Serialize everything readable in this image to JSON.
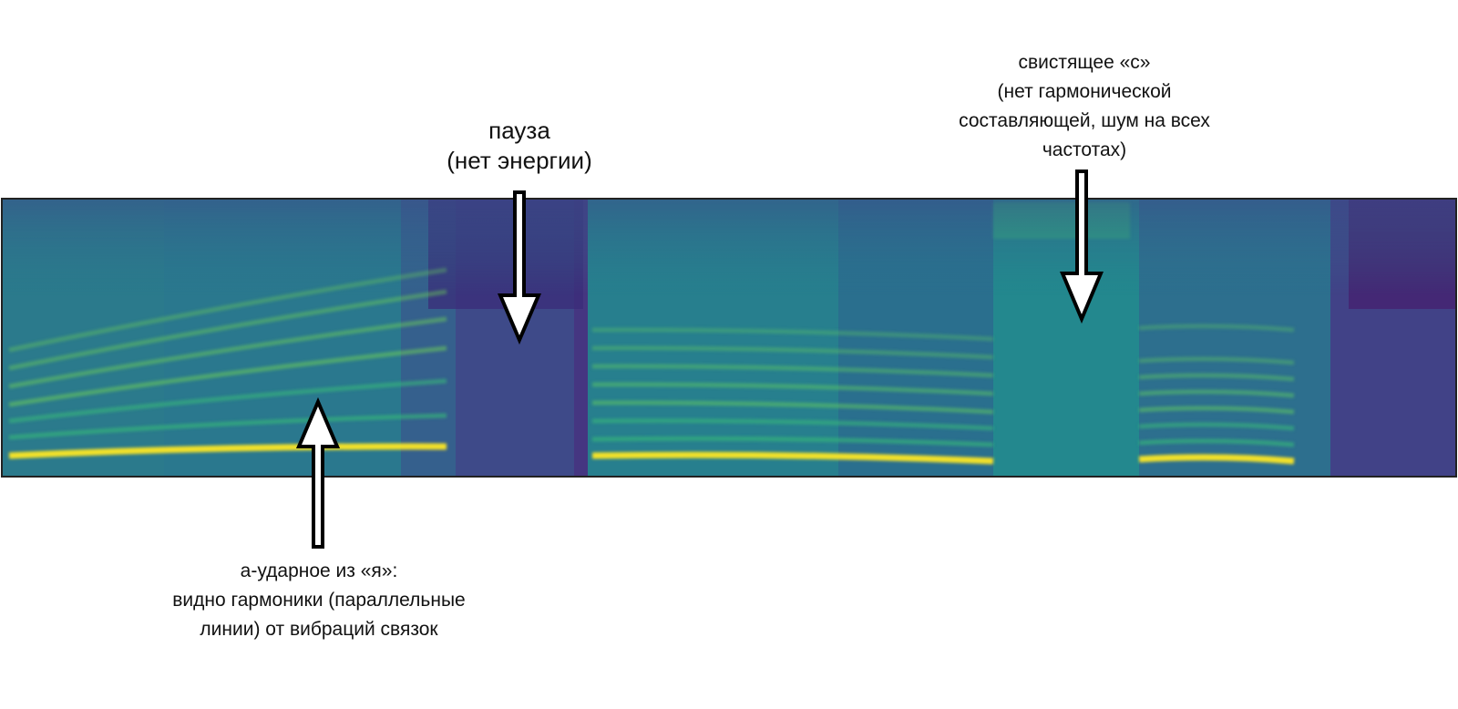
{
  "annotations": {
    "pause": {
      "lines": [
        "пауза",
        "(нет энергии)"
      ]
    },
    "sibilant": {
      "lines": [
        "свистящее «с»",
        "(нет гармонической",
        "составляющей, шум на всех",
        "частотах)"
      ]
    },
    "vowel": {
      "lines": [
        "а-ударное из «я»:",
        "видно гармоники (параллельные",
        "линии) от вибраций связок"
      ]
    }
  },
  "colors": {
    "low_energy": "#440154",
    "mid_low": "#31688e",
    "mid": "#21918c",
    "mid_high": "#35b779",
    "high_energy": "#fde725",
    "arrow_fill": "#ffffff",
    "arrow_stroke": "#000000"
  },
  "icons": {
    "pause_arrow": "down-arrow-icon",
    "sibilant_arrow": "down-arrow-icon",
    "vowel_arrow": "up-arrow-icon"
  }
}
